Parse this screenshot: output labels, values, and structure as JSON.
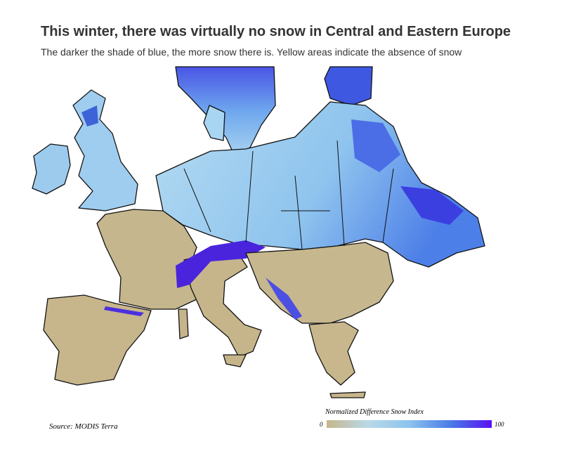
{
  "header": {
    "title": "This winter, there was virtually no snow in Central and Eastern Europe",
    "subtitle": "The darker the shade of blue, the more snow there is. Yellow areas indicate the absence of snow"
  },
  "map": {
    "source": "Source: MODIS Terra"
  },
  "legend": {
    "title": "Normalized Difference Snow Index",
    "min": 0,
    "max": 100,
    "colors": [
      "#c6b68c",
      "#b9d9e8",
      "#8cc4ee",
      "#4a7ce6",
      "#5a10f0"
    ]
  }
}
